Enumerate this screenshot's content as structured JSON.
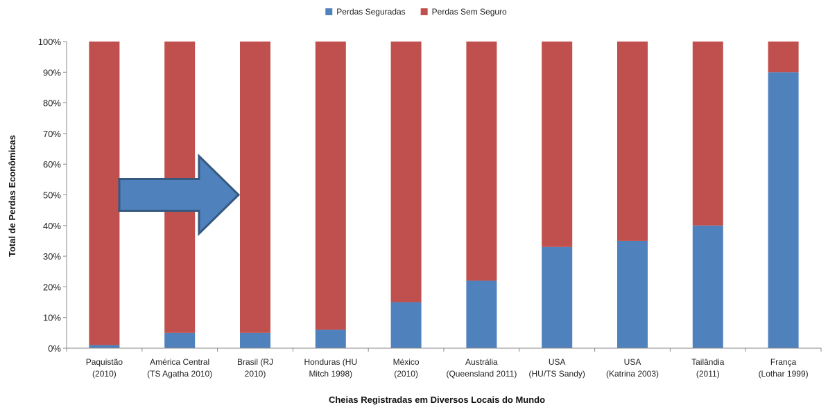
{
  "chart_data": {
    "type": "bar",
    "stacked": true,
    "categories": [
      [
        "Paquistão",
        "(2010)"
      ],
      [
        "América Central",
        "(TS Agatha 2010)"
      ],
      [
        "Brasil (RJ",
        "2010)"
      ],
      [
        "Honduras (HU",
        "Mitch 1998)"
      ],
      [
        "México",
        "(2010)"
      ],
      [
        "Austrália",
        "(Queensland 2011)"
      ],
      [
        "USA",
        "(HU/TS Sandy)"
      ],
      [
        "USA",
        "(Katrina 2003)"
      ],
      [
        "Tailândia",
        "(2011)"
      ],
      [
        "França",
        "(Lothar 1999)"
      ]
    ],
    "series": [
      {
        "name": "Perdas Seguradas",
        "color": "#4f81bd",
        "values": [
          1,
          5,
          5,
          6,
          15,
          22,
          33,
          35,
          40,
          90
        ]
      },
      {
        "name": "Perdas Sem Seguro",
        "color": "#c0504d",
        "values": [
          99,
          95,
          95,
          94,
          85,
          78,
          67,
          65,
          60,
          10
        ]
      }
    ],
    "title": "",
    "xlabel": "Cheias Registradas em Diversos Locais do Mundo",
    "ylabel": "Total de Perdas Econômicas",
    "ylim": [
      0,
      100
    ],
    "yticks": [
      "0%",
      "10%",
      "20%",
      "30%",
      "40%",
      "50%",
      "60%",
      "70%",
      "80%",
      "90%",
      "100%"
    ],
    "grid": false,
    "legend_position": "top-center",
    "annotation": {
      "shape": "arrow-right",
      "color": "#4f81bd",
      "points_to": "Brasil (RJ 2010)"
    }
  }
}
